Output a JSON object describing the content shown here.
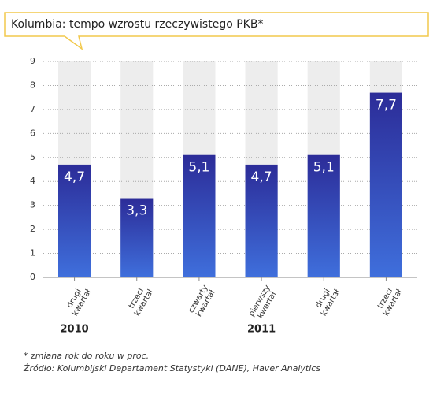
{
  "chart_data": {
    "type": "bar",
    "title": "Kolumbia: tempo wzrostu rzeczywistego PKB*",
    "categories": [
      "drugi kwartał",
      "trzeci kwartał",
      "czwarty kwartał",
      "pierwszy kwartał",
      "drugi kwartał",
      "trzeci kwartał"
    ],
    "values": [
      4.7,
      3.3,
      5.1,
      4.7,
      5.1,
      7.7
    ],
    "value_labels": [
      "4,7",
      "3,3",
      "5,1",
      "4,7",
      "5,1",
      "7,7"
    ],
    "year_labels": [
      "2010",
      "2011"
    ],
    "ylim": [
      0,
      9
    ],
    "yticks": [
      0,
      1,
      2,
      3,
      4,
      5,
      6,
      7,
      8,
      9
    ],
    "grid": true,
    "color": "#3333a8",
    "footnote": "* zmiana rok do roku w proc.",
    "source": "Źródło: Kolumbijski Departament Statystyki (DANE), Haver Analytics"
  }
}
